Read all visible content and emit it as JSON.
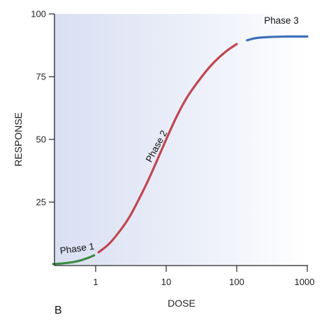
{
  "chart_data": {
    "type": "line",
    "title": "",
    "xlabel": "DOSE",
    "ylabel": "RESPONSE",
    "x_scale": "log",
    "xlim": [
      0.25,
      1000
    ],
    "ylim": [
      0,
      100
    ],
    "x_ticks": [
      1,
      10,
      100,
      1000
    ],
    "x_tick_labels": [
      "1",
      "10",
      "100",
      "1000"
    ],
    "y_ticks": [
      25,
      50,
      75,
      100
    ],
    "y_tick_labels": [
      "25",
      "50",
      "75",
      "100"
    ],
    "grid": false,
    "legend": "none",
    "panel_label": "B",
    "series": [
      {
        "name": "Phase 1",
        "color": "#3c8a43",
        "x": [
          0.25,
          0.35,
          0.5,
          0.65,
          0.8,
          0.95
        ],
        "y": [
          0.3,
          0.6,
          1.2,
          2.0,
          2.9,
          3.8
        ]
      },
      {
        "name": "Phase 2",
        "color": "#c0464f",
        "x": [
          1.1,
          1.5,
          2,
          3,
          5,
          7,
          10,
          14,
          20,
          30,
          45,
          70,
          100
        ],
        "y": [
          5,
          8,
          12,
          19,
          31,
          40,
          50,
          59,
          67,
          74,
          80,
          85,
          88
        ]
      },
      {
        "name": "Phase 3",
        "color": "#3d6fb8",
        "x": [
          140,
          180,
          250,
          350,
          500,
          700,
          1000
        ],
        "y": [
          89.5,
          90.3,
          90.7,
          90.9,
          91,
          91,
          91
        ]
      }
    ]
  }
}
